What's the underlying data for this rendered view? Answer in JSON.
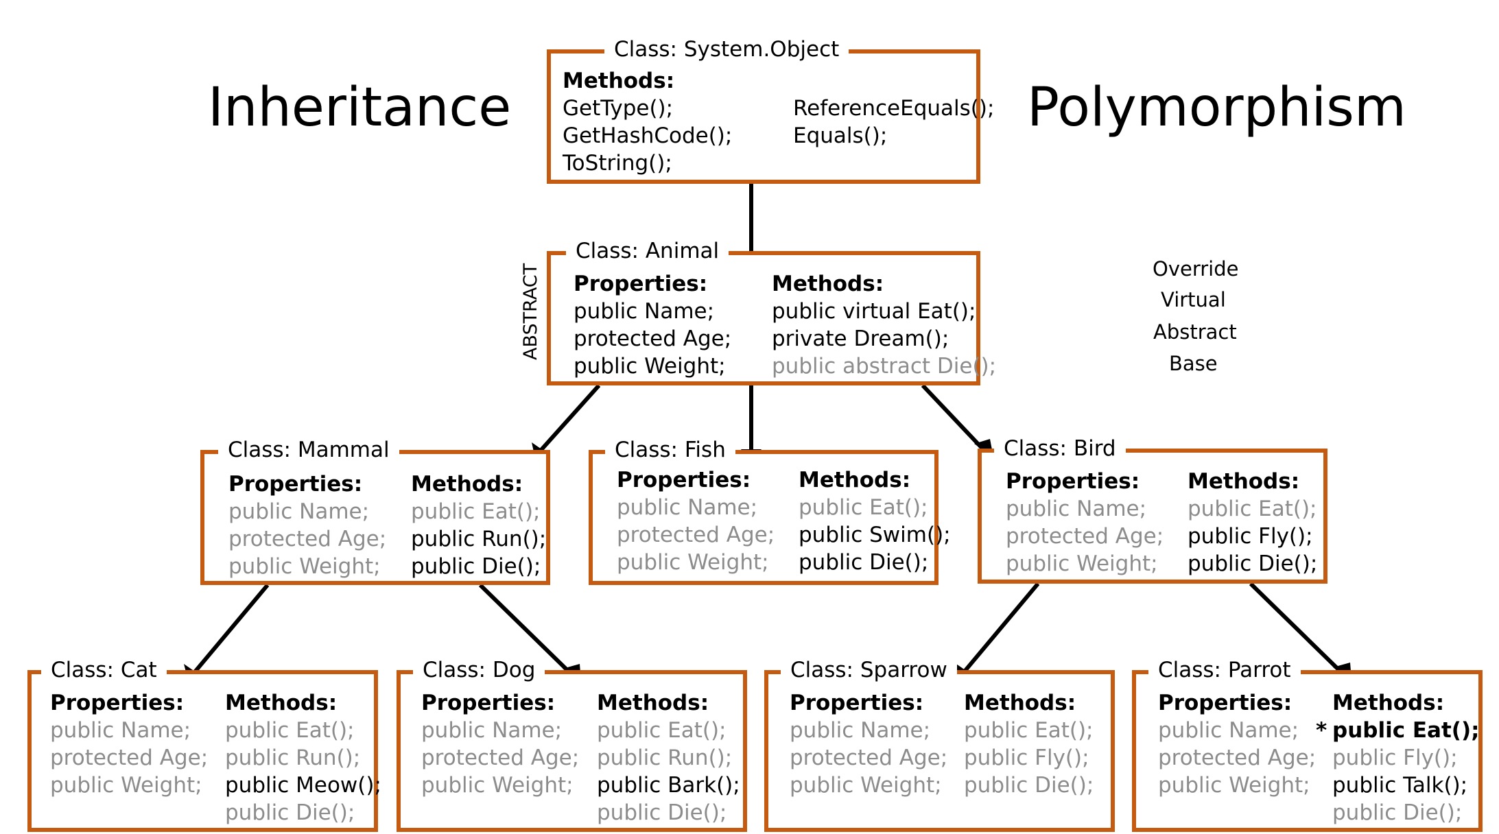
{
  "titles": {
    "left": "Inheritance",
    "right": "Polymorphism"
  },
  "keywords": [
    "Override",
    "Virtual",
    "Abstract",
    "Base"
  ],
  "abstract_label": "ABSTRACT",
  "colors": {
    "box_border": "#C55A11",
    "inherited_text": "#8c8c8c",
    "arrow": "#000000"
  },
  "classes": {
    "object": {
      "title": "Class: System.Object",
      "methods_label": "Methods:",
      "methods_left": [
        "GetType();",
        "GetHashCode();",
        "ToString();"
      ],
      "methods_right": [
        "ReferenceEquals();",
        "Equals();"
      ]
    },
    "animal": {
      "title": "Class: Animal",
      "properties_label": "Properties:",
      "methods_label": "Methods:",
      "properties": [
        "public Name;",
        "protected Age;",
        "public Weight;"
      ],
      "methods": [
        "public virtual Eat();",
        "private Dream();",
        "public abstract Die();"
      ]
    },
    "mammal": {
      "title": "Class: Mammal",
      "properties_label": "Properties:",
      "methods_label": "Methods:",
      "properties": [
        "public Name;",
        "protected Age;",
        "public Weight;"
      ],
      "methods": [
        "public Eat();",
        "public Run();",
        "public Die();"
      ]
    },
    "fish": {
      "title": "Class: Fish",
      "properties_label": "Properties:",
      "methods_label": "Methods:",
      "properties": [
        "public Name;",
        "protected Age;",
        "public Weight;"
      ],
      "methods": [
        "public Eat();",
        "public Swim();",
        "public Die();"
      ]
    },
    "bird": {
      "title": "Class: Bird",
      "properties_label": "Properties:",
      "methods_label": "Methods:",
      "properties": [
        "public Name;",
        "protected Age;",
        "public Weight;"
      ],
      "methods": [
        "public Eat();",
        "public Fly();",
        "public Die();"
      ]
    },
    "cat": {
      "title": "Class: Cat",
      "properties_label": "Properties:",
      "methods_label": "Methods:",
      "properties": [
        "public Name;",
        "protected Age;",
        "public Weight;"
      ],
      "methods": [
        "public Eat();",
        "public Run();",
        "public Meow();",
        "public Die();"
      ]
    },
    "dog": {
      "title": "Class: Dog",
      "properties_label": "Properties:",
      "methods_label": "Methods:",
      "properties": [
        "public Name;",
        "protected Age;",
        "public Weight;"
      ],
      "methods": [
        "public Eat();",
        "public Run();",
        "public Bark();",
        "public Die();"
      ]
    },
    "sparrow": {
      "title": "Class: Sparrow",
      "properties_label": "Properties:",
      "methods_label": "Methods:",
      "properties": [
        "public Name;",
        "protected Age;",
        "public Weight;"
      ],
      "methods": [
        "public Eat();",
        "public Fly();",
        "public Die();"
      ]
    },
    "parrot": {
      "title": "Class: Parrot",
      "properties_label": "Properties:",
      "methods_label": "Methods:",
      "override_marker": "*",
      "properties": [
        "public Name;",
        "protected Age;",
        "public Weight;"
      ],
      "methods": [
        "public Eat();",
        "public Fly();",
        "public Talk();",
        "public Die();"
      ]
    }
  }
}
